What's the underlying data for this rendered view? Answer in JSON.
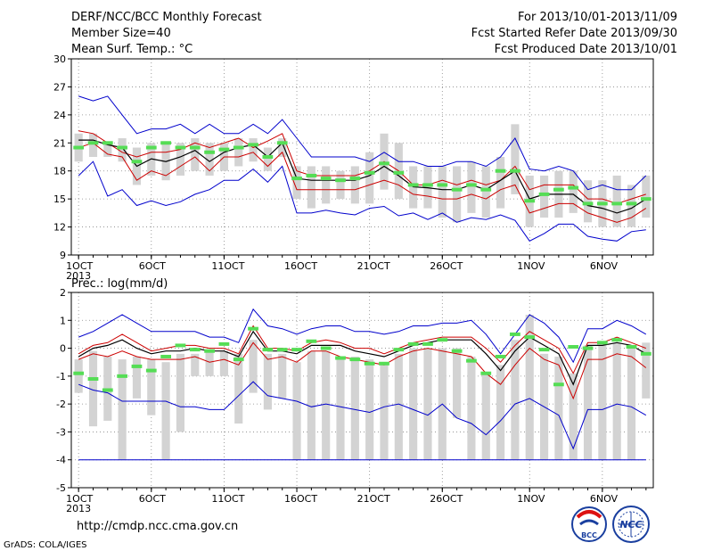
{
  "header": {
    "left": [
      "DERF/NCC/BCC Monthly Forecast",
      "Member Size=40",
      "Mean Surf. Temp.: °C"
    ],
    "right": [
      "For 2013/10/01-2013/11/09",
      "Fcst Started Refer Date 2013/09/30",
      "Fcst Produced Date 2013/10/01"
    ]
  },
  "precip_title": "Prec.: log(mm/d)",
  "url": "http://cmdp.ncc.cma.gov.cn",
  "credit": "GrADS: COLA/IGES",
  "logos": {
    "bcc": "BCC",
    "ncc": "NCC"
  },
  "colors": {
    "max_min": "#0000cc",
    "spread": "#cc0000",
    "mean": "#000000",
    "obs": "#55dd55",
    "box": "#d3d3d3"
  },
  "chart_data": [
    {
      "type": "line",
      "title": "Mean Surf. Temp.: °C",
      "xtick_labels": [
        "1OCT",
        "6OCT",
        "11OCT",
        "16OCT",
        "21OCT",
        "26OCT",
        "1NOV",
        "6NOV"
      ],
      "xtick_days": [
        1,
        6,
        11,
        16,
        21,
        26,
        32,
        37
      ],
      "xsub_label": "2013",
      "xlim": [
        0.5,
        40.5
      ],
      "ylim": [
        9,
        30
      ],
      "yticks": [
        9,
        12,
        15,
        18,
        21,
        24,
        27,
        30
      ],
      "grid": true,
      "days": [
        1,
        2,
        3,
        4,
        5,
        6,
        7,
        8,
        9,
        10,
        11,
        12,
        13,
        14,
        15,
        16,
        17,
        18,
        19,
        20,
        21,
        22,
        23,
        24,
        25,
        26,
        27,
        28,
        29,
        30,
        31,
        32,
        33,
        34,
        35,
        36,
        37,
        38,
        39,
        40
      ],
      "series": [
        {
          "role": "max",
          "values": [
            26,
            25.5,
            26,
            24,
            22,
            22.5,
            22.5,
            23,
            22,
            23,
            22,
            22,
            23,
            22,
            23.5,
            21.5,
            19.5,
            19.5,
            19.5,
            19.5,
            19,
            20,
            19,
            19,
            18.5,
            18.5,
            19,
            19,
            18.5,
            19.5,
            21.5,
            18.2,
            18,
            18.5,
            18,
            16,
            16.5,
            16,
            16,
            17.5
          ]
        },
        {
          "role": "spread_upper",
          "values": [
            22.3,
            22,
            21,
            20,
            19.5,
            20,
            20,
            20.3,
            21,
            20.5,
            21,
            21.5,
            20.5,
            21.2,
            22,
            18,
            17.5,
            17.5,
            17.5,
            17.5,
            18,
            19,
            18,
            16.5,
            16.5,
            17,
            16.5,
            17,
            16.5,
            17,
            18.5,
            16,
            16.5,
            16.5,
            16.5,
            15,
            15,
            14.5,
            15,
            15.5
          ]
        },
        {
          "role": "mean",
          "values": [
            21.3,
            21.3,
            20.8,
            20.5,
            18.5,
            19.3,
            19,
            19.5,
            20.2,
            19,
            20,
            20.5,
            20.8,
            19.5,
            21,
            17.2,
            17,
            17,
            17,
            17,
            17.5,
            18.5,
            17.5,
            16.3,
            16.2,
            16,
            16,
            16.5,
            16,
            17,
            18,
            15,
            15.5,
            15.5,
            15.5,
            14.3,
            14,
            13.5,
            14,
            15
          ]
        },
        {
          "role": "spread_lower",
          "values": [
            20.5,
            21,
            19.8,
            19.5,
            17,
            18,
            17.5,
            18.5,
            19.5,
            18,
            19.5,
            19.5,
            20,
            18.5,
            20,
            16,
            16,
            16,
            16,
            16,
            16.5,
            17,
            16.5,
            15.5,
            15.3,
            15,
            15,
            15.5,
            15,
            16,
            16.5,
            13.5,
            14,
            14.5,
            14.5,
            13.5,
            13,
            12.5,
            13,
            14
          ]
        },
        {
          "role": "min",
          "values": [
            17.5,
            19,
            15.3,
            16,
            14.3,
            14.8,
            14.3,
            14.7,
            15.5,
            16,
            17,
            17,
            18.2,
            16.8,
            18.5,
            13.5,
            13.5,
            13.8,
            13.5,
            13.3,
            14,
            14.2,
            13.2,
            13.5,
            12.8,
            13.5,
            12.5,
            13,
            12.8,
            13.3,
            12.7,
            10.5,
            11.3,
            12.3,
            12.3,
            11,
            10.7,
            10.5,
            11.5,
            11.7
          ]
        },
        {
          "role": "obs",
          "values": [
            20.5,
            21,
            21,
            20.5,
            19,
            20.5,
            21,
            20.5,
            20.5,
            20,
            20.3,
            20.5,
            20.8,
            19.5,
            21,
            17.2,
            17.5,
            17.2,
            17,
            17.2,
            17.8,
            18.8,
            17.8,
            16.5,
            16.5,
            16.5,
            16,
            16.5,
            16,
            18,
            18,
            14.8,
            15.5,
            16,
            16.2,
            14.5,
            14.5,
            14.5,
            14.5,
            15
          ]
        }
      ],
      "boxes": [
        [
          19,
          22
        ],
        [
          19.5,
          22
        ],
        [
          19.5,
          21
        ],
        [
          19,
          21.5
        ],
        [
          16.5,
          20.5
        ],
        [
          17.5,
          21
        ],
        [
          17,
          21
        ],
        [
          17.5,
          21
        ],
        [
          18,
          21.5
        ],
        [
          17.5,
          21
        ],
        [
          18,
          21
        ],
        [
          18.5,
          21.5
        ],
        [
          19,
          21.5
        ],
        [
          18,
          20.5
        ],
        [
          19.5,
          21.5
        ],
        [
          15,
          18.5
        ],
        [
          14,
          18.5
        ],
        [
          14.5,
          18.5
        ],
        [
          15,
          18
        ],
        [
          14.5,
          18.5
        ],
        [
          14.5,
          20
        ],
        [
          16,
          22
        ],
        [
          15,
          21
        ],
        [
          14,
          18.5
        ],
        [
          14,
          18.5
        ],
        [
          13,
          18.5
        ],
        [
          12.5,
          18.5
        ],
        [
          13.5,
          19
        ],
        [
          13,
          18.5
        ],
        [
          14,
          19.5
        ],
        [
          15.5,
          23
        ],
        [
          12,
          17.5
        ],
        [
          13,
          17.5
        ],
        [
          13,
          18
        ],
        [
          13.5,
          18
        ],
        [
          12.5,
          17
        ],
        [
          12,
          17
        ],
        [
          12,
          17.5
        ],
        [
          12,
          16.5
        ],
        [
          13,
          17.5
        ]
      ]
    },
    {
      "type": "line",
      "title": "Prec.: log(mm/d)",
      "xtick_labels": [
        "1OCT",
        "6OCT",
        "11OCT",
        "16OCT",
        "21OCT",
        "26OCT",
        "1NOV",
        "6NOV"
      ],
      "xtick_days": [
        1,
        6,
        11,
        16,
        21,
        26,
        32,
        37
      ],
      "xsub_label": "2013",
      "xlim": [
        0.5,
        40.5
      ],
      "ylim": [
        -5,
        2
      ],
      "yticks": [
        -5,
        -4,
        -3,
        -2,
        -1,
        0,
        1,
        2
      ],
      "grid": true,
      "days": [
        1,
        2,
        3,
        4,
        5,
        6,
        7,
        8,
        9,
        10,
        11,
        12,
        13,
        14,
        15,
        16,
        17,
        18,
        19,
        20,
        21,
        22,
        23,
        24,
        25,
        26,
        27,
        28,
        29,
        30,
        31,
        32,
        33,
        34,
        35,
        36,
        37,
        38,
        39,
        40
      ],
      "series": [
        {
          "role": "max",
          "values": [
            0.4,
            0.6,
            0.9,
            1.2,
            0.9,
            0.6,
            0.6,
            0.6,
            0.6,
            0.4,
            0.4,
            0.2,
            1.4,
            0.8,
            0.7,
            0.5,
            0.7,
            0.8,
            0.8,
            0.6,
            0.6,
            0.5,
            0.6,
            0.8,
            0.8,
            0.9,
            0.9,
            1,
            0.5,
            -0.2,
            0.5,
            1.2,
            0.9,
            0.4,
            -0.5,
            0.7,
            0.7,
            1,
            0.8,
            0.5
          ]
        },
        {
          "role": "spread_upper",
          "values": [
            -0.2,
            0.1,
            0.2,
            0.5,
            0.2,
            -0.1,
            0,
            0.1,
            0.1,
            0,
            0,
            -0.2,
            0.8,
            0,
            0,
            -0.1,
            0.2,
            0.3,
            0.2,
            0,
            0,
            -0.2,
            0,
            0.2,
            0.3,
            0.4,
            0.4,
            0.4,
            0,
            -0.5,
            0.1,
            0.6,
            0.3,
            0,
            -0.9,
            0.2,
            0.2,
            0.4,
            0.2,
            0
          ]
        },
        {
          "role": "mean",
          "values": [
            -0.3,
            0,
            0.1,
            0.3,
            0,
            -0.2,
            -0.1,
            -0.1,
            0,
            -0.1,
            -0.1,
            -0.3,
            0.6,
            -0.1,
            -0.1,
            -0.2,
            0.1,
            0.1,
            0.1,
            -0.1,
            -0.2,
            -0.3,
            -0.1,
            0.1,
            0.2,
            0.3,
            0.3,
            0.3,
            -0.2,
            -0.8,
            -0.1,
            0.4,
            0.1,
            -0.2,
            -1.3,
            0.1,
            0.1,
            0.2,
            0.1,
            -0.2
          ]
        },
        {
          "role": "spread_lower",
          "values": [
            -0.4,
            -0.2,
            -0.3,
            -0.1,
            -0.3,
            -0.4,
            -0.4,
            -0.4,
            -0.3,
            -0.5,
            -0.4,
            -0.6,
            0.2,
            -0.4,
            -0.3,
            -0.5,
            -0.1,
            -0.1,
            -0.3,
            -0.4,
            -0.5,
            -0.6,
            -0.3,
            -0.1,
            0,
            -0.1,
            -0.2,
            -0.3,
            -0.9,
            -1.3,
            -0.6,
            0,
            -0.4,
            -0.6,
            -1.8,
            -0.4,
            -0.4,
            -0.2,
            -0.3,
            -0.7
          ]
        },
        {
          "role": "min",
          "values": [
            -1.3,
            -1.5,
            -1.6,
            -1.9,
            -1.9,
            -1.9,
            -1.9,
            -2.1,
            -2.1,
            -2.2,
            -2.2,
            -1.7,
            -1.2,
            -1.7,
            -1.8,
            -1.9,
            -2.1,
            -2,
            -2.1,
            -2.2,
            -2.3,
            -2.1,
            -2,
            -2.2,
            -2.4,
            -2,
            -2.5,
            -2.7,
            -3.1,
            -2.6,
            -2,
            -1.8,
            -2.1,
            -2.4,
            -3.6,
            -2.2,
            -2.2,
            -2,
            -2.1,
            -2.4
          ]
        },
        {
          "role": "obs",
          "values": [
            -0.9,
            -1.1,
            -1.5,
            -1,
            -0.65,
            -0.8,
            -0.3,
            0.1,
            -0.05,
            -0.1,
            0.15,
            -0.4,
            0.7,
            -0.05,
            -0.05,
            -0.05,
            0.25,
            0,
            -0.35,
            -0.4,
            -0.55,
            -0.55,
            -0.05,
            0.15,
            0.15,
            0.3,
            -0.1,
            -0.45,
            -0.9,
            -0.3,
            0.5,
            0.4,
            -0.05,
            -1.3,
            0.05,
            0,
            0.2,
            0.3,
            0.05,
            -0.2
          ]
        },
        {
          "role": "floor",
          "values": [
            -4
          ]
        }
      ],
      "boxes": [
        [
          -1.6,
          -0.4
        ],
        [
          -2.8,
          -0.1
        ],
        [
          -2.6,
          -0.3
        ],
        [
          -4,
          -0.4
        ],
        [
          -1.8,
          -0.3
        ],
        [
          -2.4,
          -0.4
        ],
        [
          -4,
          -0.5
        ],
        [
          -3,
          -0.2
        ],
        [
          -1,
          -0.2
        ],
        [
          -1,
          -0.1
        ],
        [
          -1,
          -0.1
        ],
        [
          -2.7,
          -0.2
        ],
        [
          -1.6,
          0.3
        ],
        [
          -2.2,
          -0.2
        ],
        [
          -1.8,
          -0.2
        ],
        [
          -4,
          -0.5
        ],
        [
          -4,
          -0.1
        ],
        [
          -4,
          -0.1
        ],
        [
          -4,
          -0.3
        ],
        [
          -4,
          -0.3
        ],
        [
          -4,
          -0.4
        ],
        [
          -4,
          -0.5
        ],
        [
          -4,
          -0.2
        ],
        [
          -4,
          0
        ],
        [
          -4,
          0
        ],
        [
          -4,
          0
        ],
        [
          -2.5,
          0
        ],
        [
          -4,
          -0.3
        ],
        [
          -4,
          -0.9
        ],
        [
          -4,
          -0.6
        ],
        [
          -4,
          0.3
        ],
        [
          -4,
          1.2
        ],
        [
          -4,
          -0.2
        ],
        [
          -4,
          -0.3
        ],
        [
          -4,
          -0.9
        ],
        [
          -4,
          0.1
        ],
        [
          -4,
          0.1
        ],
        [
          -4,
          0.2
        ],
        [
          -4,
          0.1
        ],
        [
          -1.8,
          0.2
        ]
      ]
    }
  ]
}
